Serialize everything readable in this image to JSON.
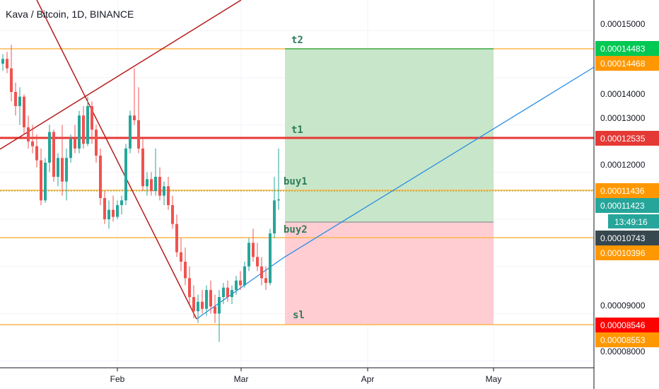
{
  "header": {
    "title": "Kava / Bitcoin, 1D, BINANCE"
  },
  "colors": {
    "up": "#26a69a",
    "down": "#ef5350",
    "orange": "#ff9800",
    "red": "#e53935",
    "green_zone": "#c8e6c9",
    "red_zone": "#ffcdd2",
    "trend_blue": "#1e88e5",
    "channel_dark_red": "#b71c1c",
    "green_tag": "#00c853",
    "dark_tag": "#37474f",
    "annotation": "#2e7d5b"
  },
  "chart_data": {
    "type": "candlestick",
    "symbol": "Kava / Bitcoin",
    "interval": "1D",
    "exchange": "BINANCE",
    "x_tick_labels": [
      "Feb",
      "Mar",
      "Apr",
      "May"
    ],
    "y_tick_labels": [
      "0.00015000",
      "0.00014000",
      "0.00013000",
      "0.00012000",
      "0.00009000",
      "0.00008000"
    ],
    "ylim": [
      7.85e-05,
      0.0001565
    ],
    "series": [
      {
        "type": "candles",
        "start_date": "2020-01-07",
        "values_note": "approximate OHLC",
        "ohlc": [
          [
            0.000143,
            0.000145,
            0.0001415,
            0.000144
          ],
          [
            0.000144,
            0.0001455,
            0.000141,
            0.000142
          ],
          [
            0.000142,
            0.000147,
            0.000135,
            0.000137
          ],
          [
            0.000137,
            0.000139,
            0.000132,
            0.000134
          ],
          [
            0.000134,
            0.000138,
            0.00013,
            0.000136
          ],
          [
            0.000136,
            0.0001365,
            0.000128,
            0.0001295
          ],
          [
            0.0001295,
            0.000132,
            0.000125,
            0.0001265
          ],
          [
            0.0001265,
            0.00013,
            0.000124,
            0.0001255
          ],
          [
            0.0001255,
            0.000128,
            0.000121,
            0.0001225
          ],
          [
            0.0001225,
            0.000125,
            0.000113,
            0.000114
          ],
          [
            0.000114,
            0.000123,
            0.0001135,
            0.000122
          ],
          [
            0.000122,
            0.00013,
            0.00012,
            0.0001285
          ],
          [
            0.0001285,
            0.000129,
            0.000118,
            0.000119
          ],
          [
            0.000119,
            0.000124,
            0.000117,
            0.000123
          ],
          [
            0.000123,
            0.00013,
            0.000115,
            0.000118
          ],
          [
            0.000118,
            0.000125,
            0.000114,
            0.000123
          ],
          [
            0.000123,
            0.000128,
            0.000122,
            0.000127
          ],
          [
            0.000127,
            0.00013,
            0.000124,
            0.000125
          ],
          [
            0.000125,
            0.000133,
            0.000124,
            0.000132
          ],
          [
            0.000132,
            0.000134,
            0.000125,
            0.000126
          ],
          [
            0.000126,
            0.000136,
            0.0001255,
            0.000134
          ],
          [
            0.000134,
            0.000135,
            0.000126,
            0.000129
          ],
          [
            0.000129,
            0.00013,
            0.000122,
            0.0001235
          ],
          [
            0.0001235,
            0.000125,
            0.000113,
            0.0001145
          ],
          [
            0.0001145,
            0.000116,
            0.000109,
            0.00011
          ],
          [
            0.00011,
            0.000114,
            0.000108,
            0.000112
          ],
          [
            0.000112,
            0.000115,
            0.0001095,
            0.0001105
          ],
          [
            0.0001105,
            0.000114,
            0.00011,
            0.000113
          ],
          [
            0.000113,
            0.000115,
            0.000111,
            0.000114
          ],
          [
            0.000114,
            0.000126,
            0.000113,
            0.000125
          ],
          [
            0.000125,
            0.000133,
            0.000124,
            0.000132
          ],
          [
            0.000132,
            0.000142,
            0.00013,
            0.000131
          ],
          [
            0.000131,
            0.000138,
            0.000124,
            0.000125
          ],
          [
            0.000125,
            0.000127,
            0.000116,
            0.000117
          ],
          [
            0.000117,
            0.00012,
            0.000115,
            0.0001185
          ],
          [
            0.0001185,
            0.00012,
            0.000115,
            0.000116
          ],
          [
            0.000116,
            0.000125,
            0.000115,
            0.000119
          ],
          [
            0.000119,
            0.000121,
            0.000114,
            0.000115
          ],
          [
            0.000115,
            0.000118,
            0.000113,
            0.000117
          ],
          [
            0.000117,
            0.000119,
            0.000112,
            0.000113
          ],
          [
            0.000113,
            0.000115,
            0.000108,
            0.000109
          ],
          [
            0.000109,
            0.000111,
            0.000102,
            0.000103
          ],
          [
            0.000103,
            0.000106,
            9.9e-05,
            0.000101
          ],
          [
            0.000101,
            0.000104,
            9.6e-05,
            9.75e-05
          ],
          [
            9.75e-05,
            0.0001,
            9.2e-05,
            9.35e-05
          ],
          [
            9.35e-05,
            9.6e-05,
            8.9e-05,
            9.05e-05
          ],
          [
            9.05e-05,
            9.4e-05,
            8.8e-05,
            9.25e-05
          ],
          [
            9.25e-05,
            9.5e-05,
            9e-05,
            9.1e-05
          ],
          [
            9.1e-05,
            9.6e-05,
            8.95e-05,
            9.5e-05
          ],
          [
            9.5e-05,
            9.7e-05,
            9e-05,
            9.15e-05
          ],
          [
            9.15e-05,
            9.4e-05,
            8.8e-05,
            9e-05
          ],
          [
            9e-05,
            9.5e-05,
            8.4e-05,
            9.35e-05
          ],
          [
            9.35e-05,
            9.65e-05,
            9.2e-05,
            9.55e-05
          ],
          [
            9.55e-05,
            9.7e-05,
            9.25e-05,
            9.35e-05
          ],
          [
            9.35e-05,
            9.6e-05,
            9.2e-05,
            9.5e-05
          ],
          [
            9.5e-05,
            9.8e-05,
            9.4e-05,
            9.7e-05
          ],
          [
            9.7e-05,
            9.9e-05,
            9.5e-05,
            9.6e-05
          ],
          [
            9.6e-05,
            0.000101,
            9.55e-05,
            0.0001
          ],
          [
            0.0001,
            0.000106,
            9.9e-05,
            0.000105
          ],
          [
            0.000105,
            0.000108,
            0.000101,
            0.000102
          ],
          [
            0.000102,
            0.000105,
            9.9e-05,
            0.0001
          ],
          [
            0.0001,
            0.000102,
            9.6e-05,
            9.75e-05
          ],
          [
            9.75e-05,
            0.0001,
            9.5e-05,
            9.65e-05
          ],
          [
            9.65e-05,
            0.000108,
            9.6e-05,
            0.000107
          ],
          [
            0.000107,
            0.000119,
            0.000106,
            0.000114
          ],
          [
            0.000114,
            0.000125,
            0.000112,
            0.0001142
          ]
        ]
      }
    ],
    "levels": [
      {
        "label": "t2",
        "price": "0.00014483"
      },
      {
        "label": "t1",
        "price": "0.00012535"
      },
      {
        "label": "buy1",
        "price": "0.00011436"
      },
      {
        "label": "buy2",
        "price": "0.00010743"
      },
      {
        "label": "sl",
        "price": "0.00008546"
      }
    ],
    "price_tags": [
      {
        "text": "0.00014483",
        "color": "#00c853"
      },
      {
        "text": "0.00014468",
        "color": "#ff9800"
      },
      {
        "text": "0.00012535",
        "color": "#e53935"
      },
      {
        "text": "0.00011436",
        "color": "#ff9800"
      },
      {
        "text": "0.00011423",
        "color": "#26a69a"
      },
      {
        "text": "13:49:16",
        "color": "#26a69a"
      },
      {
        "text": "0.00010743",
        "color": "#37474f"
      },
      {
        "text": "0.00010396",
        "color": "#ff9800"
      },
      {
        "text": "0.00008546",
        "color": "#ff0000"
      },
      {
        "text": "0.00008553",
        "color": "#ff9800"
      }
    ],
    "grid": true,
    "legend": "none"
  }
}
